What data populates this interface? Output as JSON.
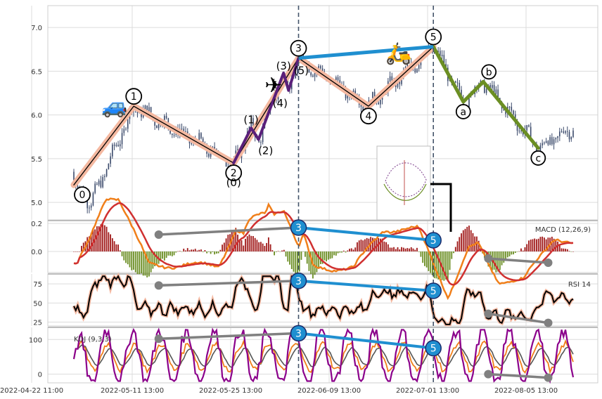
{
  "chart_data": {
    "type": "candlestick",
    "colors": {
      "up": "#3b4a6b",
      "down": "#3b4a6b",
      "wave_main": "#f4b8a0",
      "wave_sub": "#5a1f7a",
      "wave_abc": "#6b8e23",
      "divergence_up": "#1f8fd0",
      "divergence_down": "#808080",
      "macd": "#f07f1a",
      "signal": "#d03030",
      "hist_pos": "#a01818",
      "hist_neg": "#6b8e23",
      "rsi": "#000000",
      "k": "#f07f1a",
      "d": "#555555",
      "j": "#8b008b",
      "vline": "#44546a"
    },
    "icons": [
      "car-icon",
      "airplane-icon",
      "scooter-icon"
    ],
    "x_tick_labels": [
      "2022-04-22 11:00",
      "2022-05-11 13:00",
      "2022-05-25 13:00",
      "2022-06-09 13:00",
      "2022-07-01 13:00",
      "2022-08-05 13:00"
    ],
    "price_axis": {
      "ylim": [
        4.8,
        7.25
      ],
      "ticks": [
        "5.0",
        "5.5",
        "6.0",
        "6.5",
        "7.0"
      ]
    },
    "macd_axis": {
      "ylim": [
        -0.15,
        0.22
      ],
      "ticks": [
        "0.2",
        "0.0"
      ],
      "label": "MACD (12,26,9)"
    },
    "rsi_axis": {
      "ylim": [
        20,
        88
      ],
      "ticks": [
        "75",
        "50",
        "25"
      ],
      "label": "RSI 14"
    },
    "kdj_axis": {
      "ylim": [
        -25,
        135
      ],
      "ticks": [
        "100",
        "0"
      ],
      "label": "KDJ (9,3,3)"
    },
    "waves": {
      "main": [
        {
          "label": "0",
          "t": 0.0,
          "price": 5.2
        },
        {
          "label": "1",
          "t": 0.12,
          "price": 6.1
        },
        {
          "label": "2",
          "t": 0.32,
          "price": 5.45
        },
        {
          "label": "3",
          "t": 0.45,
          "price": 6.65
        },
        {
          "label": "4",
          "t": 0.59,
          "price": 6.1
        },
        {
          "label": "5",
          "t": 0.72,
          "price": 6.78
        }
      ],
      "sub": [
        {
          "label": "(0)",
          "t": 0.32,
          "price": 5.45
        },
        {
          "label": "(1)",
          "t": 0.355,
          "price": 5.85
        },
        {
          "label": "(2)",
          "t": 0.37,
          "price": 5.72
        },
        {
          "label": "(3)",
          "t": 0.42,
          "price": 6.48
        },
        {
          "label": "(4)",
          "t": 0.43,
          "price": 6.28
        },
        {
          "label": "(5)",
          "t": 0.45,
          "price": 6.65
        }
      ],
      "abc": [
        {
          "label": "a",
          "t": 0.78,
          "price": 6.15
        },
        {
          "label": "b",
          "t": 0.82,
          "price": 6.38
        },
        {
          "label": "c",
          "t": 0.93,
          "price": 5.62
        }
      ]
    },
    "divergences": {
      "macd": [
        {
          "label": "3",
          "t": 0.45,
          "v": 0.17
        },
        {
          "label": "5",
          "t": 0.72,
          "v": 0.08
        }
      ],
      "rsi": [
        {
          "label": "3",
          "t": 0.45,
          "v": 79
        },
        {
          "label": "5",
          "t": 0.72,
          "v": 66
        }
      ],
      "kdj": [
        {
          "label": "3",
          "t": 0.45,
          "v": 118
        },
        {
          "label": "5",
          "t": 0.72,
          "v": 75
        }
      ]
    }
  }
}
